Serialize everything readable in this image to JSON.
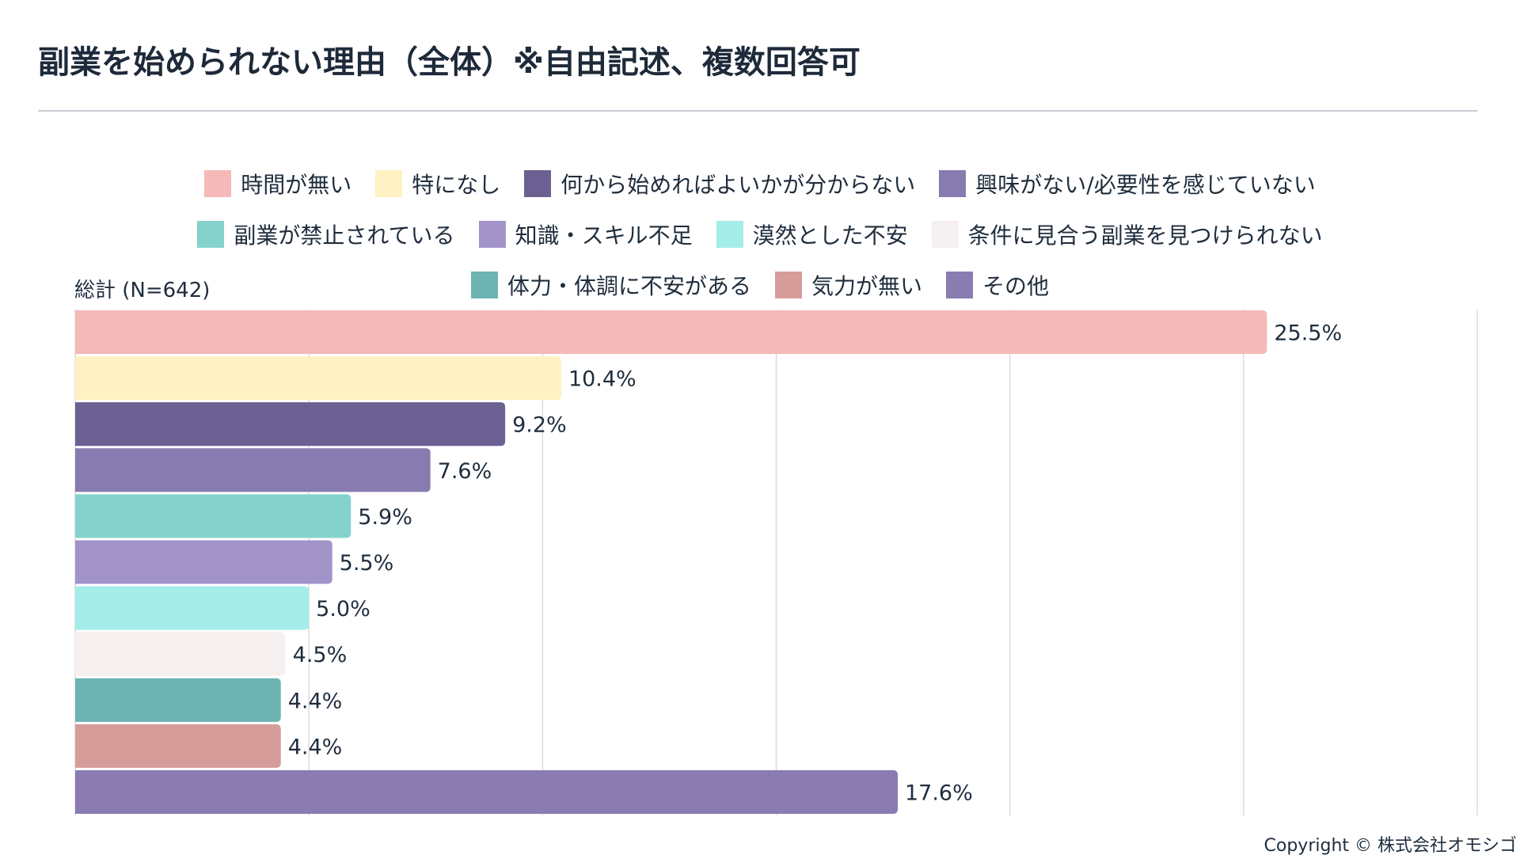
{
  "title": "副業を始められない理由（全体）※自由記述、複数回答可",
  "copyright": "Copyright © 株式会社オモシゴ",
  "chart_data": {
    "type": "bar",
    "orientation": "horizontal",
    "title": "副業を始められない理由（全体）※自由記述、複数回答可",
    "category_label": "総計 (N=642)",
    "xlim": [
      0,
      30
    ],
    "grid": true,
    "legend_position": "top",
    "value_suffix": "%",
    "series": [
      {
        "name": "時間が無い",
        "value": 25.5,
        "label": "25.5%",
        "color": "#f4b9b8"
      },
      {
        "name": "特になし",
        "value": 10.4,
        "label": "10.4%",
        "color": "#fff1c1"
      },
      {
        "name": "何から始めればよいかが分からない",
        "value": 9.2,
        "label": "9.2%",
        "color": "#6c5f91"
      },
      {
        "name": "興味がない/必要性を感じていない",
        "value": 7.6,
        "label": "7.6%",
        "color": "#887baf"
      },
      {
        "name": "副業が禁止されている",
        "value": 5.9,
        "label": "5.9%",
        "color": "#85d2cc"
      },
      {
        "name": "知識・スキル不足",
        "value": 5.5,
        "label": "5.5%",
        "color": "#a294c9"
      },
      {
        "name": "漠然とした不安",
        "value": 5.0,
        "label": "5.0%",
        "color": "#a5ede8"
      },
      {
        "name": "条件に見合う副業を見つけられない",
        "value": 4.5,
        "label": "4.5%",
        "color": "#f7f0f0"
      },
      {
        "name": "体力・体調に不安がある",
        "value": 4.4,
        "label": "4.4%",
        "color": "#6bb4b1"
      },
      {
        "name": "気力が無い",
        "value": 4.4,
        "label": "4.4%",
        "color": "#d69c9a"
      },
      {
        "name": "その他",
        "value": 17.6,
        "label": "17.6%",
        "color": "#8a7bb0"
      }
    ],
    "legend_rows": [
      [
        0,
        1,
        2,
        3
      ],
      [
        4,
        5,
        6,
        7
      ],
      [
        8,
        9,
        10
      ]
    ]
  }
}
